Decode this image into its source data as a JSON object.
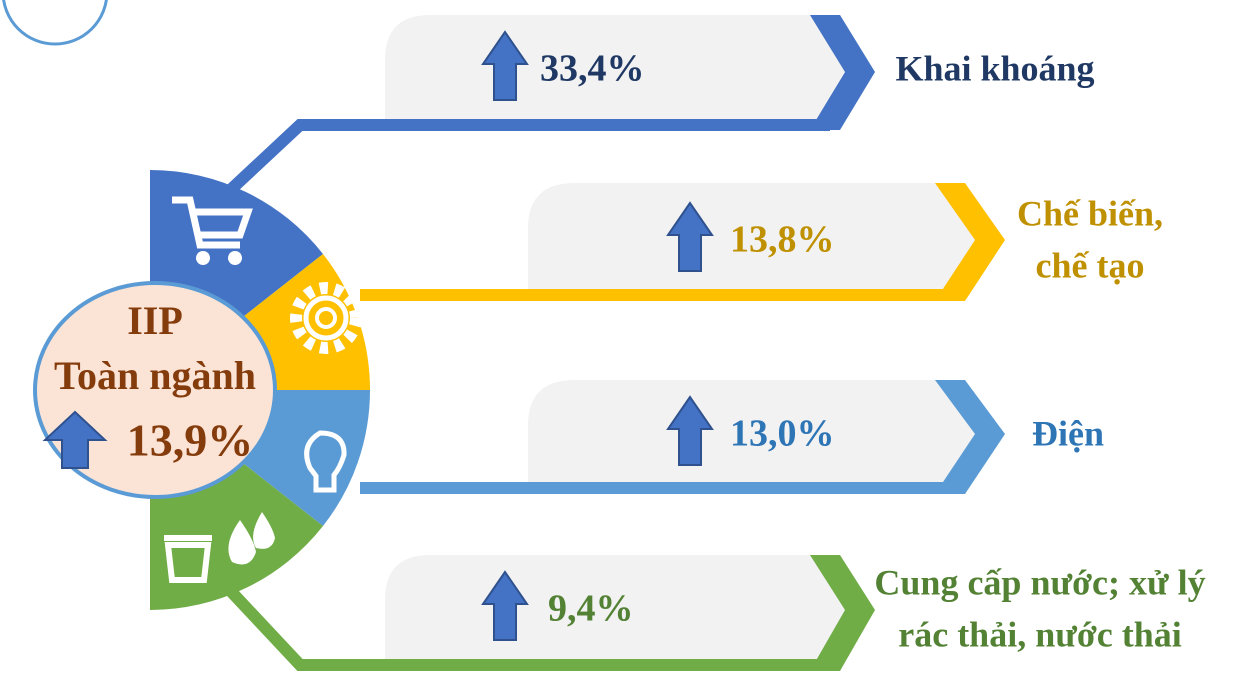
{
  "center": {
    "title": "IIP",
    "subtitle": "Toàn ngành",
    "value": "13,9%"
  },
  "items": [
    {
      "value": "33,4%",
      "label": [
        "Khai khoáng"
      ]
    },
    {
      "value": "13,8%",
      "label": [
        "Chế biến,",
        "chế tạo"
      ]
    },
    {
      "value": "13,0%",
      "label": [
        "Điện"
      ]
    },
    {
      "value": "9,4%",
      "label": [
        "Cung cấp nước; xử lý",
        "rác thải, nước thải"
      ]
    }
  ]
}
